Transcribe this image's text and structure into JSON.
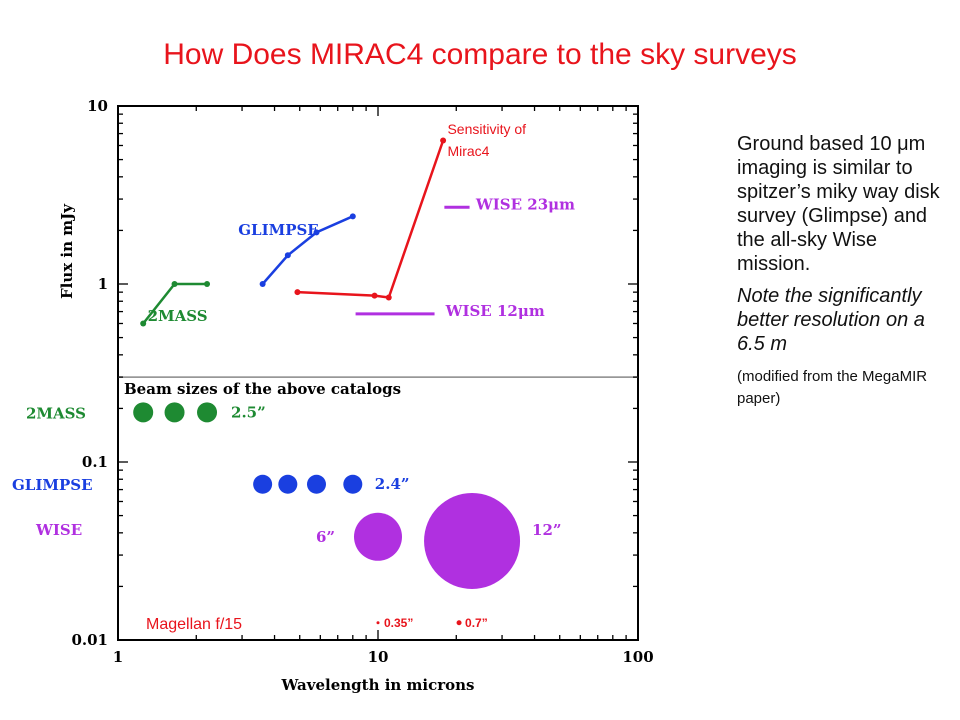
{
  "page": {
    "title": "How Does MIRAC4 compare to the sky surveys"
  },
  "notes": {
    "paragraph1": "Ground based 10 μm imaging is similar to spitzer’s miky way disk survey (Glimpse) and the all-sky Wise mission.",
    "paragraph2": "Note the significantly better resolution on a 6.5 m",
    "paragraph3": "(modified from the MegaMIR paper)"
  },
  "chart_data": {
    "type": "line",
    "xlabel": "Wavelength in microns",
    "ylabel": "Flux in mJy",
    "xscale": "log",
    "yscale": "log",
    "xlim": [
      1,
      100
    ],
    "ylim": [
      0.01,
      10
    ],
    "x_ticks": [
      "1",
      "10",
      "100"
    ],
    "y_ticks": [
      "0.01",
      "0.1",
      "1",
      "10"
    ],
    "colors": {
      "2MASS": "#1e8a32",
      "GLIMPSE": "#1a3fe0",
      "WISE": "#b030e0",
      "Mirac4": "#e8141c"
    },
    "series": [
      {
        "name": "2MASS",
        "x": [
          1.25,
          1.65,
          2.2
        ],
        "y": [
          0.6,
          1.0,
          1.0
        ]
      },
      {
        "name": "GLIMPSE",
        "x": [
          3.6,
          4.5,
          5.8,
          8.0
        ],
        "y": [
          1.0,
          1.45,
          1.95,
          2.4
        ]
      },
      {
        "name": "Sensitivity of Mirac4",
        "x": [
          4.9,
          9.7,
          11.0,
          17.8
        ],
        "y": [
          0.9,
          0.86,
          0.84,
          6.4
        ]
      },
      {
        "name": "WISE 12μm",
        "x": [
          8.2,
          16.5
        ],
        "y": [
          0.68,
          0.68
        ]
      },
      {
        "name": "WISE 23μm",
        "x": [
          18.0,
          22.5
        ],
        "y": [
          2.7,
          2.7
        ]
      }
    ],
    "series_labels": {
      "2MASS": "2MASS",
      "GLIMPSE": "GLIMPSE",
      "Mirac4": "Sensitivity of Mirac4",
      "WISE12": "WISE 12μm",
      "WISE23": "WISE 23μm"
    },
    "beam_section": {
      "title": "Beam sizes of the above catalogs",
      "divider_flux": 0.3,
      "rows": [
        {
          "name": "2MASS",
          "label": "2MASS",
          "beam": "2.5”",
          "x": [
            1.25,
            1.65,
            2.2
          ],
          "y": 0.19,
          "size": "small"
        },
        {
          "name": "GLIMPSE",
          "label": "GLIMPSE",
          "beam": "2.4”",
          "x": [
            3.6,
            4.5,
            5.8,
            8.0
          ],
          "y": 0.075,
          "size": "small"
        },
        {
          "name": "WISE",
          "label": "WISE",
          "beams": [
            {
              "x": 10,
              "y": 0.038,
              "label": "6”"
            },
            {
              "x": 23,
              "y": 0.036,
              "label": "12”"
            }
          ]
        },
        {
          "name": "Magellan",
          "label": "Magellan f/15",
          "beams": [
            {
              "x": 10,
              "y": 0.0125,
              "label": "0.35”"
            },
            {
              "x": 20.5,
              "y": 0.0125,
              "label": "0.7”"
            }
          ]
        }
      ]
    }
  }
}
